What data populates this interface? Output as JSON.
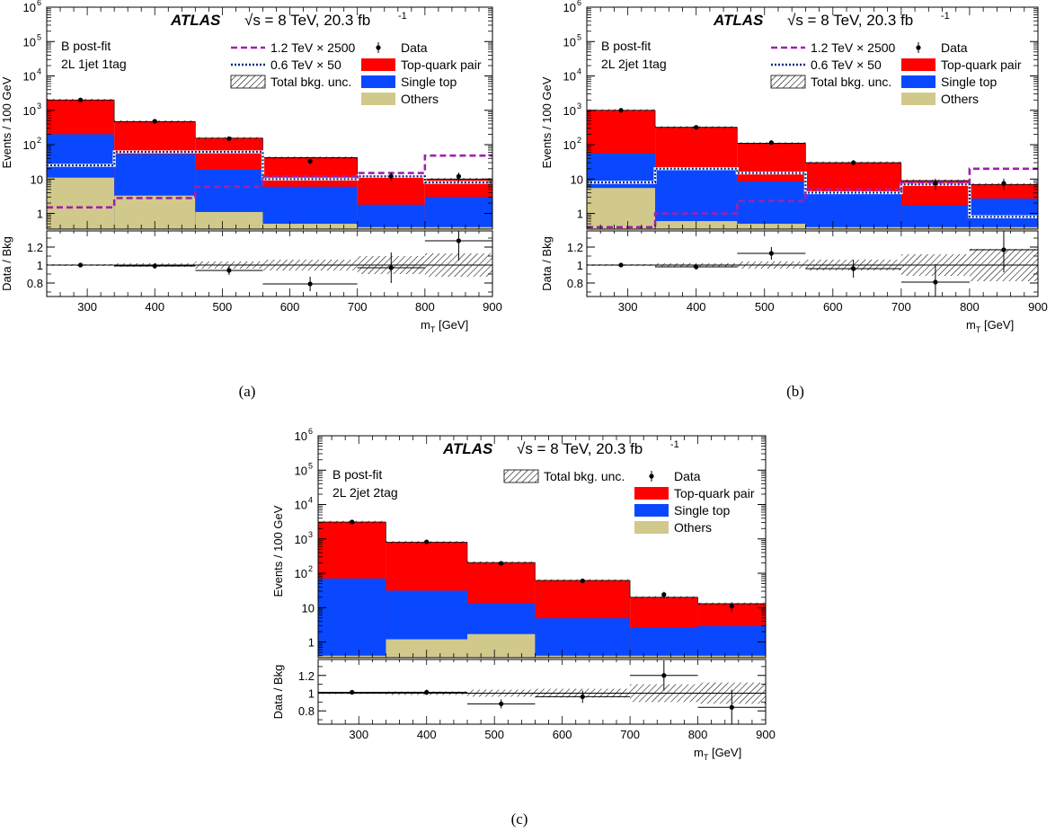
{
  "header": {
    "experiment": "ATLAS",
    "energy": "√s = 8 TeV, 20.3 fb",
    "lumi_exp": "-1"
  },
  "legend_labels": {
    "sig12": "1.2 TeV × 2500",
    "sig06": "0.6 TeV × 50",
    "unc": "Total bkg. unc.",
    "data": "Data",
    "ttbar": "Top-quark pair",
    "single_top": "Single top",
    "others": "Others"
  },
  "colors": {
    "ttbar": "#ff0000",
    "single_top": "#0a48ff",
    "others": "#d1c98b",
    "sig12": "#a020b0",
    "sig06": "#0d2a7a"
  },
  "axis_labels": {
    "ylabel_main": "Events / 100 GeV",
    "ylabel_ratio": "Data / Bkg",
    "xlabel": "m",
    "xlabel_sub": "T",
    "xlabel_unit": " [GeV]"
  },
  "chart_data": [
    {
      "type": "bar",
      "caption": "(a)",
      "status": "B post-fit",
      "region": "2L 1jet 1tag",
      "bin_edges": [
        240,
        340,
        460,
        560,
        700,
        800,
        900
      ],
      "log_y": true,
      "ylim": [
        0.35,
        1000000
      ],
      "ratio_ylim": [
        0.65,
        1.38
      ],
      "x_ticks": [
        300,
        400,
        500,
        600,
        700,
        800,
        900
      ],
      "show_signals": true,
      "stacks": {
        "others": [
          11,
          3.3,
          1.1,
          0.5,
          0.4,
          0.4
        ],
        "single_top": [
          190,
          50,
          18,
          5.5,
          1.4,
          2.6
        ],
        "ttbar": [
          2000,
          470,
          155,
          42,
          12,
          10
        ]
      },
      "sig12": [
        1.5,
        2.8,
        6.0,
        12,
        15,
        48
      ],
      "sig06": [
        25,
        62,
        62,
        10,
        12,
        8
      ],
      "data": {
        "x": [
          290,
          400,
          510,
          630,
          750,
          850
        ],
        "y": [
          2000,
          480,
          150,
          33,
          12,
          12
        ]
      },
      "ratio": {
        "x": [
          290,
          400,
          510,
          630,
          750,
          850
        ],
        "y": [
          1.0,
          0.99,
          0.94,
          0.79,
          0.97,
          1.27
        ],
        "yerr": [
          0.02,
          0.03,
          0.05,
          0.08,
          0.17,
          0.22
        ],
        "unc": [
          0.01,
          0.02,
          0.04,
          0.06,
          0.1,
          0.13
        ]
      }
    },
    {
      "type": "bar",
      "caption": "(b)",
      "status": "B post-fit",
      "region": "2L 2jet 1tag",
      "bin_edges": [
        240,
        340,
        460,
        560,
        700,
        800,
        900
      ],
      "log_y": true,
      "ylim": [
        0.35,
        1000000
      ],
      "ratio_ylim": [
        0.65,
        1.38
      ],
      "x_ticks": [
        300,
        400,
        500,
        600,
        700,
        800,
        900
      ],
      "show_signals": true,
      "stacks": {
        "others": [
          5.5,
          0.6,
          0.5,
          0.4,
          0.4,
          0.4
        ],
        "single_top": [
          50,
          20,
          8,
          3.3,
          1.3,
          2.3
        ],
        "ttbar": [
          1000,
          320,
          110,
          30,
          9,
          7
        ]
      },
      "sig12": [
        0.4,
        1.0,
        2.3,
        5.0,
        8.0,
        20
      ],
      "sig06": [
        8,
        20,
        15,
        4,
        7,
        0.8
      ],
      "data": {
        "x": [
          290,
          400,
          510,
          630,
          750,
          850
        ],
        "y": [
          1000,
          320,
          115,
          30,
          7.5,
          7.5
        ]
      },
      "ratio": {
        "x": [
          290,
          400,
          510,
          630,
          750,
          850
        ],
        "y": [
          1.0,
          0.98,
          1.13,
          0.96,
          0.81,
          1.17
        ],
        "yerr": [
          0.02,
          0.03,
          0.07,
          0.1,
          0.2,
          0.25
        ],
        "unc": [
          0.01,
          0.02,
          0.04,
          0.06,
          0.12,
          0.18
        ]
      }
    },
    {
      "type": "bar",
      "caption": "(c)",
      "status": "B  post-fit",
      "region": "2L 2jet 2tag",
      "bin_edges": [
        240,
        340,
        460,
        560,
        700,
        800,
        900
      ],
      "log_y": true,
      "ylim": [
        0.35,
        1000000
      ],
      "ratio_ylim": [
        0.65,
        1.38
      ],
      "x_ticks": [
        300,
        400,
        500,
        600,
        700,
        800,
        900
      ],
      "show_signals": false,
      "stacks": {
        "others": [
          0.4,
          1.2,
          1.7,
          0.4,
          0.4,
          0.4
        ],
        "single_top": [
          70,
          30,
          12,
          4.5,
          2.2,
          2.5
        ],
        "ttbar": [
          3100,
          800,
          205,
          62,
          20,
          13
        ]
      },
      "data": {
        "x": [
          290,
          400,
          510,
          630,
          750,
          850
        ],
        "y": [
          3100,
          820,
          195,
          60,
          24,
          11
        ]
      },
      "ratio": {
        "x": [
          290,
          400,
          510,
          630,
          750,
          850
        ],
        "y": [
          1.01,
          1.01,
          0.88,
          0.96,
          1.2,
          0.84
        ],
        "yerr": [
          0.02,
          0.03,
          0.05,
          0.07,
          0.17,
          0.2
        ],
        "unc": [
          0.01,
          0.02,
          0.04,
          0.05,
          0.1,
          0.12
        ]
      }
    }
  ]
}
